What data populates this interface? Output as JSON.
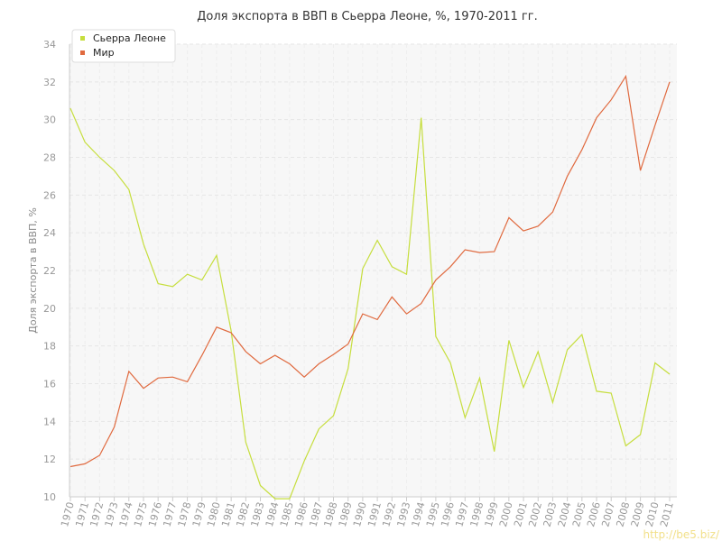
{
  "chart_data": {
    "type": "line",
    "title": "Доля экспорта в ВВП в Сьерра Леоне, %, 1970-2011 гг.",
    "ylabel": "Доля экспорта в ВВП, %",
    "xlabel": "",
    "ylim": [
      10,
      34
    ],
    "yticks": [
      "10",
      "12",
      "14",
      "16",
      "18",
      "20",
      "22",
      "24",
      "26",
      "28",
      "30",
      "32",
      "34"
    ],
    "grid": true,
    "legend_position": "top-left",
    "x": [
      "1970",
      "1971",
      "1972",
      "1973",
      "1974",
      "1975",
      "1976",
      "1977",
      "1978",
      "1979",
      "1980",
      "1981",
      "1982",
      "1983",
      "1984",
      "1985",
      "1986",
      "1987",
      "1988",
      "1989",
      "1990",
      "1991",
      "1992",
      "1993",
      "1994",
      "1995",
      "1996",
      "1997",
      "1998",
      "1999",
      "2000",
      "2001",
      "2002",
      "2003",
      "2004",
      "2005",
      "2006",
      "2007",
      "2008",
      "2009",
      "2010",
      "2011"
    ],
    "series": [
      {
        "name": "Сьерра Леоне",
        "color": "#c6de3d",
        "values": [
          30.6,
          28.8,
          28.0,
          27.3,
          26.3,
          23.4,
          21.3,
          21.15,
          21.8,
          21.5,
          22.8,
          18.8,
          12.9,
          10.6,
          9.9,
          9.9,
          11.9,
          13.6,
          14.3,
          16.8,
          22.1,
          23.6,
          22.2,
          21.8,
          30.1,
          18.5,
          17.1,
          14.2,
          16.3,
          12.4,
          18.3,
          15.8,
          17.7,
          15.0,
          17.8,
          18.6,
          15.6,
          15.5,
          12.7,
          13.3,
          17.1,
          16.5
        ]
      },
      {
        "name": "Мир",
        "color": "#e06a3f",
        "values": [
          11.6,
          11.75,
          12.2,
          13.7,
          16.65,
          15.75,
          16.3,
          16.35,
          16.1,
          17.5,
          19.0,
          18.7,
          17.7,
          17.05,
          17.5,
          17.05,
          16.35,
          17.05,
          17.55,
          18.1,
          19.7,
          19.4,
          20.6,
          19.7,
          20.25,
          21.5,
          22.2,
          23.1,
          22.95,
          23.0,
          24.8,
          24.1,
          24.35,
          25.1,
          27.0,
          28.4,
          30.1,
          31.05,
          32.3,
          27.3,
          29.7,
          32.0
        ]
      }
    ]
  },
  "watermark": "http://be5.biz/"
}
